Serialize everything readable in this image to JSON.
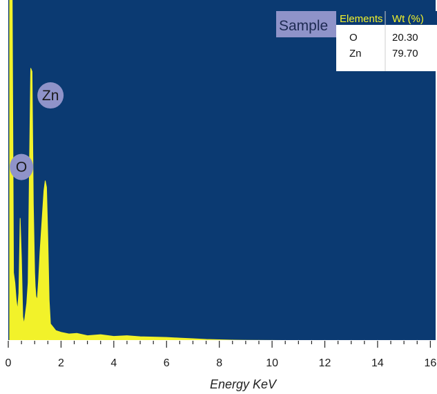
{
  "colors": {
    "plot_background": "#0b3a72",
    "spectrum": "#f2f22a",
    "peak_marker": "#8f93c9",
    "table_header_bg": "#0b3a72",
    "table_header_text": "#f2f22a",
    "sample_box": "#8f93c9"
  },
  "sample_label": "Sample",
  "composition_table": {
    "headers": [
      "Elements",
      "Wt (%)"
    ],
    "rows": [
      {
        "element": "O",
        "wt": "20.30"
      },
      {
        "element": "Zn",
        "wt": "79.70"
      }
    ]
  },
  "chart_data": {
    "type": "area",
    "xlabel": "Energy KeV",
    "ylabel": "",
    "xlim": [
      0,
      16.2
    ],
    "ylim": [
      0,
      100
    ],
    "xticks": [
      "0",
      "2",
      "4",
      "6",
      "8",
      "10",
      "12",
      "14",
      "16"
    ],
    "legend": "top-right table",
    "grid": false,
    "series": [
      {
        "x": [
          0.05,
          0.1,
          0.15,
          0.2,
          0.25,
          0.3,
          0.35,
          0.4,
          0.45,
          0.5,
          0.55,
          0.6,
          0.65,
          0.7,
          0.75,
          0.8,
          0.85,
          0.9,
          0.95,
          1.0,
          1.02,
          1.05,
          1.1,
          1.15,
          1.2,
          1.25,
          1.3,
          1.35,
          1.4,
          1.45,
          1.5,
          1.55,
          1.6,
          1.7,
          1.8,
          2.0,
          2.3,
          2.6,
          3.0,
          3.5,
          4.0,
          4.5,
          5.0,
          5.5,
          6.0,
          6.5,
          7.0,
          7.5,
          8.0,
          8.5,
          9.0,
          12.0,
          16.0
        ],
        "values": [
          100,
          100,
          100,
          20,
          17,
          12,
          9,
          14,
          36,
          24,
          7,
          5,
          8,
          11,
          17,
          50,
          80,
          79,
          40,
          20,
          16,
          13,
          12,
          18,
          26,
          32,
          38,
          44,
          47,
          45,
          30,
          12,
          5,
          4,
          3,
          2.5,
          2,
          2.2,
          1.5,
          1.8,
          1.3,
          1.5,
          1.2,
          1.1,
          1.0,
          0.8,
          0.6,
          0.4,
          0.3,
          0.2,
          0.15,
          0.05,
          0
        ]
      }
    ],
    "peak_labels": [
      {
        "text": "O",
        "x": 0.5,
        "y": 51
      },
      {
        "text": "Zn",
        "x": 1.05,
        "y": 112
      },
      {
        "text": "Zn",
        "x": 1.6,
        "y": 72
      }
    ]
  }
}
